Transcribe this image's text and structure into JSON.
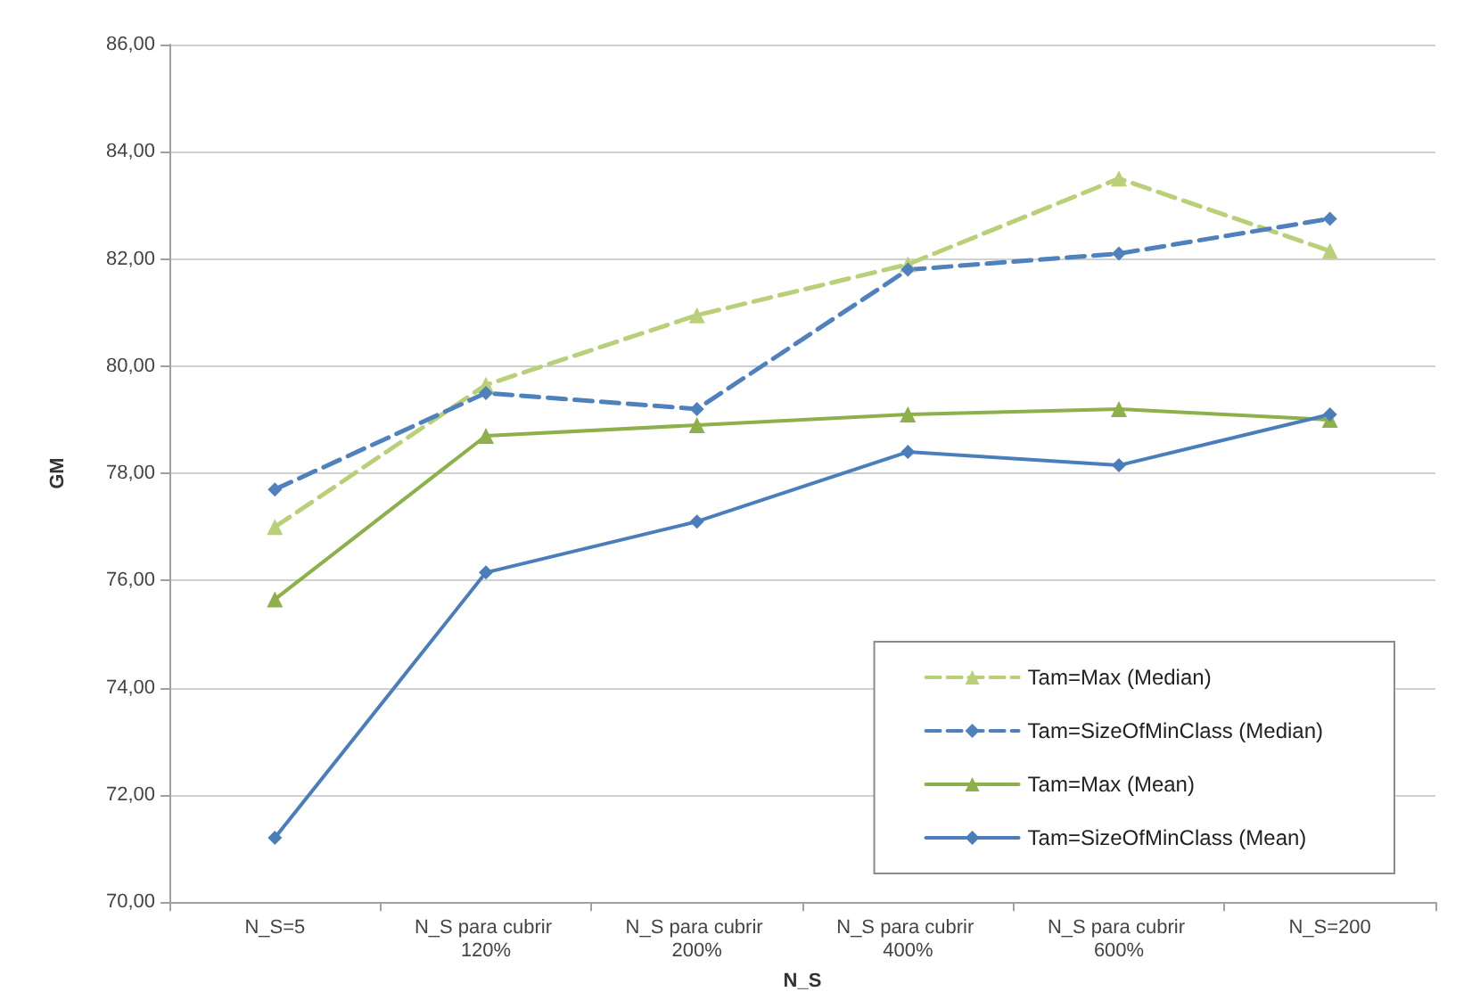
{
  "chart_data": {
    "type": "line",
    "categories": [
      "N_S=5",
      "N_S para cubrir 120%",
      "N_S para cubrir 200%",
      "N_S para cubrir 400%",
      "N_S para cubrir 600%",
      "N_S=200"
    ],
    "series": [
      {
        "name": "Tam=Max (Median)",
        "color": "#b9d078",
        "marker": "triangle",
        "line_style": "dashed",
        "values": [
          77.0,
          79.65,
          80.95,
          81.9,
          83.5,
          82.15
        ]
      },
      {
        "name": "Tam=SizeOfMinClass (Median)",
        "color": "#4f81bd",
        "marker": "diamond",
        "line_style": "dashed",
        "values": [
          77.7,
          79.5,
          79.2,
          81.8,
          82.1,
          82.75
        ]
      },
      {
        "name": "Tam=Max (Mean)",
        "color": "#8db04a",
        "marker": "triangle",
        "line_style": "solid",
        "values": [
          75.65,
          78.7,
          78.9,
          79.1,
          79.2,
          79.0
        ]
      },
      {
        "name": "Tam=SizeOfMinClass (Mean)",
        "color": "#4a7ebb",
        "marker": "diamond",
        "line_style": "solid",
        "values": [
          71.2,
          76.15,
          77.1,
          78.4,
          78.15,
          79.1
        ]
      }
    ],
    "xlabel": "N_S",
    "ylabel": "GM",
    "ylim": [
      70,
      86
    ],
    "yticks": [
      {
        "value": 70,
        "label": "70,00"
      },
      {
        "value": 72,
        "label": "72,00"
      },
      {
        "value": 74,
        "label": "74,00"
      },
      {
        "value": 76,
        "label": "76,00"
      },
      {
        "value": 78,
        "label": "78,00"
      },
      {
        "value": 80,
        "label": "80,00"
      },
      {
        "value": 82,
        "label": "82,00"
      },
      {
        "value": 84,
        "label": "84,00"
      },
      {
        "value": 86,
        "label": "86,00"
      }
    ],
    "grid": "y",
    "legend": "bottom right"
  }
}
